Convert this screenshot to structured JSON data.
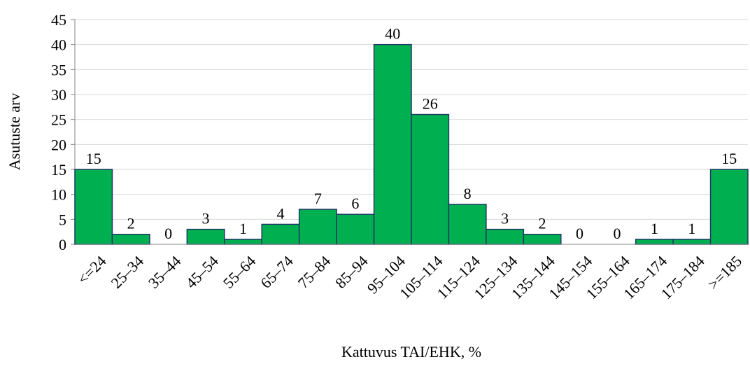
{
  "chart_data": {
    "type": "bar",
    "categories": [
      "<=24",
      "25–34",
      "35–44",
      "45–54",
      "55–64",
      "65–74",
      "75–84",
      "85–94",
      "95–104",
      "105–114",
      "115–124",
      "125–134",
      "135–144",
      "145–154",
      "155–164",
      "165–174",
      "175–184",
      ">=185"
    ],
    "values": [
      15,
      2,
      0,
      3,
      1,
      4,
      7,
      6,
      40,
      26,
      8,
      3,
      2,
      0,
      0,
      1,
      1,
      15
    ],
    "color": "#00b050",
    "edge_color": "#1f3864",
    "ylim": [
      0,
      45
    ],
    "yticks": [
      0,
      5,
      10,
      15,
      20,
      25,
      30,
      35,
      40,
      45
    ],
    "grid": true,
    "x_label": "Kattuvus TAI/EHK, %",
    "y_label": "Asutuste arv"
  }
}
